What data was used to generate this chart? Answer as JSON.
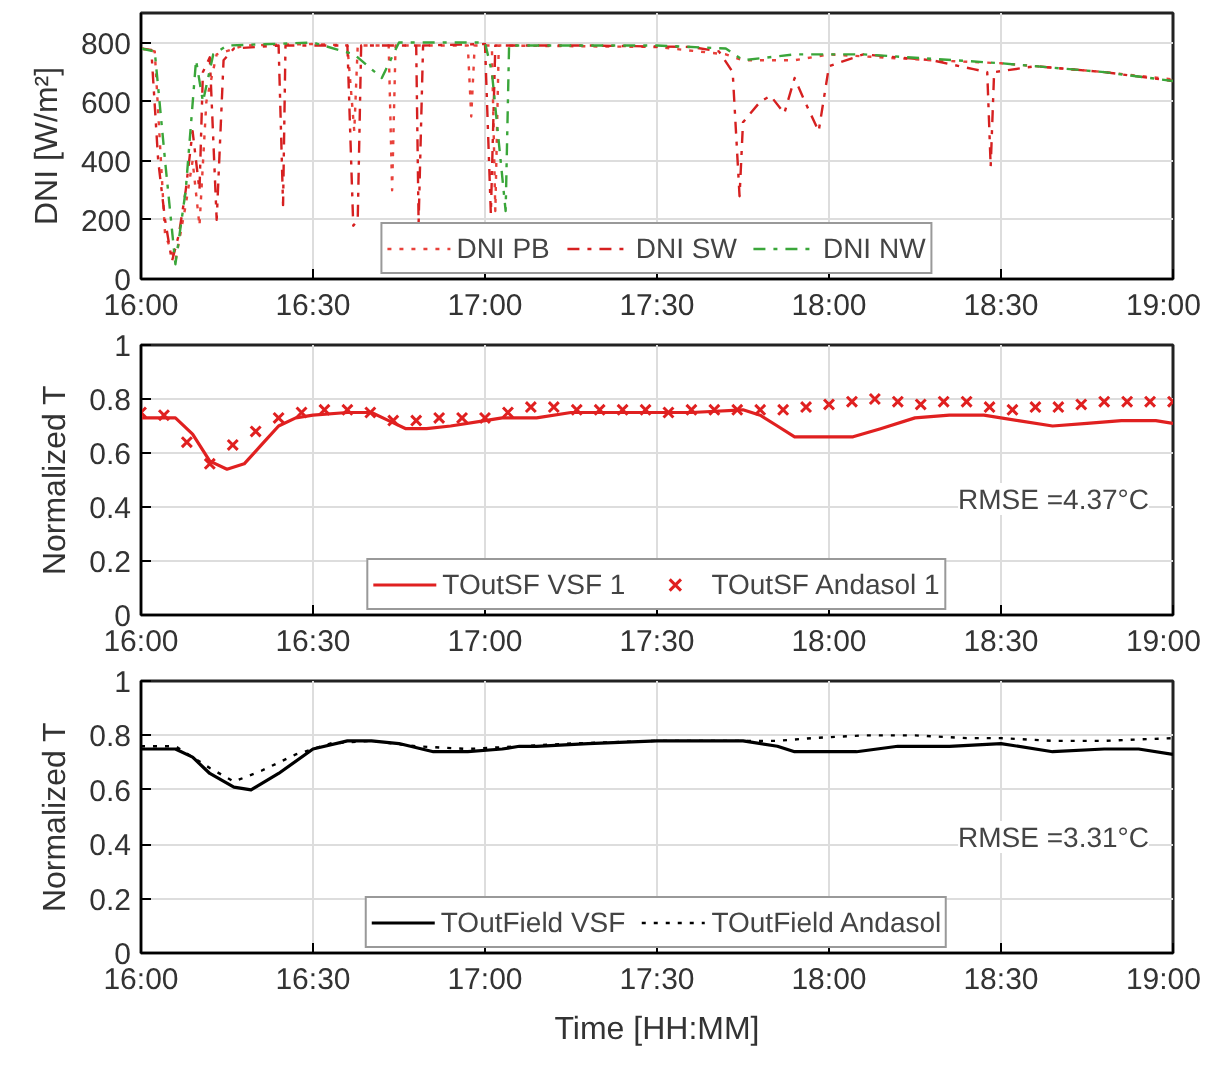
{
  "chart_data": [
    {
      "type": "line",
      "ylabel": "DNI [W/m²]",
      "xlim": [
        16,
        19
      ],
      "ylim": [
        0,
        900
      ],
      "xticks": [
        {
          "value": 16,
          "label": "16:00"
        },
        {
          "value": 16.5,
          "label": "16:30"
        },
        {
          "value": 17,
          "label": "17:00"
        },
        {
          "value": 17.5,
          "label": "17:30"
        },
        {
          "value": 18,
          "label": "18:00"
        },
        {
          "value": 18.5,
          "label": "18:30"
        },
        {
          "value": 19,
          "label": "19:00"
        }
      ],
      "yticks": [
        0,
        200,
        400,
        600,
        800
      ],
      "grid": true,
      "legend": "bottom",
      "series": [
        {
          "name": "DNI PB",
          "color": "#e8413a",
          "line_style": "dotted",
          "x": [
            16.0,
            16.04,
            16.07,
            16.1,
            16.13,
            16.15,
            16.17,
            16.19,
            16.22,
            16.3,
            16.5,
            16.6,
            16.62,
            16.63,
            16.72,
            16.73,
            16.74,
            16.95,
            16.96,
            16.97,
            17.02,
            17.03,
            17.04,
            17.5,
            17.7,
            17.75,
            17.9,
            18.0,
            18.3,
            18.5,
            18.8,
            19.0
          ],
          "values": [
            780,
            770,
            150,
            60,
            250,
            400,
            180,
            600,
            760,
            790,
            795,
            790,
            500,
            790,
            790,
            300,
            790,
            790,
            550,
            790,
            790,
            230,
            790,
            785,
            760,
            740,
            740,
            760,
            740,
            730,
            700,
            675
          ]
        },
        {
          "name": "DNI SW",
          "color": "#d62020",
          "line_style": "dashdot",
          "x": [
            16.0,
            16.03,
            16.05,
            16.07,
            16.09,
            16.11,
            16.13,
            16.15,
            16.17,
            16.18,
            16.2,
            16.22,
            16.24,
            16.27,
            16.4,
            16.413,
            16.42,
            16.6,
            16.617,
            16.63,
            16.64,
            16.8,
            16.807,
            16.82,
            17.0,
            17.017,
            17.03,
            17.3,
            17.6,
            17.68,
            17.72,
            17.74,
            17.75,
            17.8,
            17.83,
            17.87,
            17.9,
            17.93,
            17.97,
            18.0,
            18.1,
            18.3,
            18.42,
            18.46,
            18.47,
            18.48,
            18.6,
            18.8,
            19.0
          ],
          "values": [
            780,
            775,
            400,
            200,
            60,
            150,
            300,
            500,
            300,
            700,
            750,
            200,
            740,
            780,
            790,
            250,
            790,
            790,
            180,
            200,
            790,
            790,
            190,
            790,
            795,
            220,
            790,
            790,
            785,
            770,
            700,
            280,
            530,
            600,
            620,
            560,
            680,
            600,
            500,
            720,
            760,
            740,
            710,
            700,
            380,
            700,
            720,
            700,
            670
          ]
        },
        {
          "name": "DNI NW",
          "color": "#3aa63a",
          "line_style": "dashdot",
          "x": [
            16.0,
            16.04,
            16.07,
            16.1,
            16.13,
            16.16,
            16.18,
            16.21,
            16.25,
            16.5,
            16.62,
            16.7,
            16.75,
            17.0,
            17.02,
            17.06,
            17.07,
            17.5,
            17.7,
            17.75,
            17.9,
            18.1,
            18.5,
            18.8,
            19.0
          ],
          "values": [
            780,
            770,
            400,
            50,
            300,
            740,
            600,
            760,
            790,
            800,
            760,
            680,
            800,
            800,
            700,
            230,
            790,
            790,
            780,
            740,
            760,
            760,
            730,
            700,
            670
          ]
        }
      ]
    },
    {
      "type": "line",
      "ylabel": "Normalized T",
      "xlim": [
        16,
        19
      ],
      "ylim": [
        0,
        1
      ],
      "xticks": [
        {
          "value": 16,
          "label": "16:00"
        },
        {
          "value": 16.5,
          "label": "16:30"
        },
        {
          "value": 17,
          "label": "17:00"
        },
        {
          "value": 17.5,
          "label": "17:30"
        },
        {
          "value": 18,
          "label": "18:00"
        },
        {
          "value": 18.5,
          "label": "18:30"
        },
        {
          "value": 19,
          "label": "19:00"
        }
      ],
      "yticks": [
        0,
        0.2,
        0.4,
        0.6,
        0.8,
        1
      ],
      "grid": true,
      "legend": "bottom",
      "annotations": [
        "RMSE =4.37°C"
      ],
      "series": [
        {
          "name": "TOutSF VSF 1",
          "color": "#e02020",
          "line_style": "solid",
          "x": [
            16.0,
            16.1,
            16.15,
            16.2,
            16.25,
            16.3,
            16.35,
            16.4,
            16.45,
            16.5,
            16.6,
            16.67,
            16.72,
            16.77,
            16.83,
            16.9,
            17.0,
            17.05,
            17.15,
            17.25,
            17.5,
            17.6,
            17.75,
            17.8,
            17.85,
            17.9,
            18.0,
            18.07,
            18.15,
            18.25,
            18.35,
            18.45,
            18.55,
            18.65,
            18.75,
            18.85,
            18.95,
            19.0
          ],
          "values": [
            0.73,
            0.73,
            0.67,
            0.57,
            0.54,
            0.56,
            0.63,
            0.7,
            0.73,
            0.74,
            0.75,
            0.75,
            0.72,
            0.69,
            0.69,
            0.7,
            0.72,
            0.73,
            0.73,
            0.75,
            0.75,
            0.75,
            0.76,
            0.74,
            0.7,
            0.66,
            0.66,
            0.66,
            0.69,
            0.73,
            0.74,
            0.74,
            0.72,
            0.7,
            0.71,
            0.72,
            0.72,
            0.71
          ]
        },
        {
          "name": "TOutSF Andasol 1",
          "type": "scatter",
          "marker": "x",
          "color": "#e02020",
          "x": [
            16.0,
            16.0667,
            16.1333,
            16.2,
            16.2667,
            16.3333,
            16.4,
            16.4667,
            16.5333,
            16.6,
            16.6667,
            16.7333,
            16.8,
            16.8667,
            16.9333,
            17.0,
            17.0667,
            17.1333,
            17.2,
            17.2667,
            17.3333,
            17.4,
            17.4667,
            17.5333,
            17.6,
            17.6667,
            17.7333,
            17.8,
            17.8667,
            17.9333,
            18.0,
            18.0667,
            18.1333,
            18.2,
            18.2667,
            18.3333,
            18.4,
            18.4667,
            18.5333,
            18.6,
            18.6667,
            18.7333,
            18.8,
            18.8667,
            18.9333,
            19.0
          ],
          "values": [
            0.75,
            0.74,
            0.64,
            0.56,
            0.63,
            0.68,
            0.73,
            0.75,
            0.76,
            0.76,
            0.75,
            0.72,
            0.72,
            0.73,
            0.73,
            0.73,
            0.75,
            0.77,
            0.77,
            0.76,
            0.76,
            0.76,
            0.76,
            0.75,
            0.76,
            0.76,
            0.76,
            0.76,
            0.76,
            0.77,
            0.78,
            0.79,
            0.8,
            0.79,
            0.78,
            0.79,
            0.79,
            0.77,
            0.76,
            0.77,
            0.77,
            0.78,
            0.79,
            0.79,
            0.79,
            0.79
          ]
        }
      ]
    },
    {
      "type": "line",
      "ylabel": "Normalized T",
      "xlabel": "Time [HH:MM]",
      "xlim": [
        16,
        19
      ],
      "ylim": [
        0,
        1
      ],
      "xticks": [
        {
          "value": 16,
          "label": "16:00"
        },
        {
          "value": 16.5,
          "label": "16:30"
        },
        {
          "value": 17,
          "label": "17:00"
        },
        {
          "value": 17.5,
          "label": "17:30"
        },
        {
          "value": 18,
          "label": "18:00"
        },
        {
          "value": 18.5,
          "label": "18:30"
        },
        {
          "value": 19,
          "label": "19:00"
        }
      ],
      "yticks": [
        0,
        0.2,
        0.4,
        0.6,
        0.8,
        1
      ],
      "grid": true,
      "legend": "bottom",
      "annotations": [
        "RMSE =3.31°C"
      ],
      "series": [
        {
          "name": "TOutField VSF",
          "color": "#000000",
          "line_style": "solid",
          "x": [
            16.0,
            16.1,
            16.15,
            16.2,
            16.27,
            16.32,
            16.4,
            16.5,
            16.6,
            16.67,
            16.75,
            16.85,
            16.95,
            17.05,
            17.1,
            17.15,
            17.3,
            17.5,
            17.75,
            17.85,
            17.9,
            18.0,
            18.08,
            18.2,
            18.35,
            18.5,
            18.65,
            18.8,
            18.9,
            19.0
          ],
          "values": [
            0.75,
            0.75,
            0.72,
            0.66,
            0.61,
            0.6,
            0.66,
            0.75,
            0.78,
            0.78,
            0.77,
            0.74,
            0.74,
            0.75,
            0.76,
            0.76,
            0.77,
            0.78,
            0.78,
            0.76,
            0.74,
            0.74,
            0.74,
            0.76,
            0.76,
            0.77,
            0.74,
            0.75,
            0.75,
            0.73
          ]
        },
        {
          "name": "TOutField Andasol",
          "color": "#000000",
          "line_style": "dotted",
          "x": [
            16.0,
            16.1,
            16.2,
            16.27,
            16.35,
            16.45,
            16.55,
            16.67,
            16.8,
            16.95,
            17.1,
            17.25,
            17.5,
            17.75,
            17.85,
            17.95,
            18.1,
            18.25,
            18.4,
            18.5,
            18.65,
            18.8,
            19.0
          ],
          "values": [
            0.76,
            0.76,
            0.68,
            0.63,
            0.67,
            0.73,
            0.77,
            0.78,
            0.76,
            0.75,
            0.76,
            0.77,
            0.78,
            0.78,
            0.78,
            0.79,
            0.8,
            0.8,
            0.79,
            0.79,
            0.78,
            0.78,
            0.79
          ]
        }
      ]
    }
  ]
}
